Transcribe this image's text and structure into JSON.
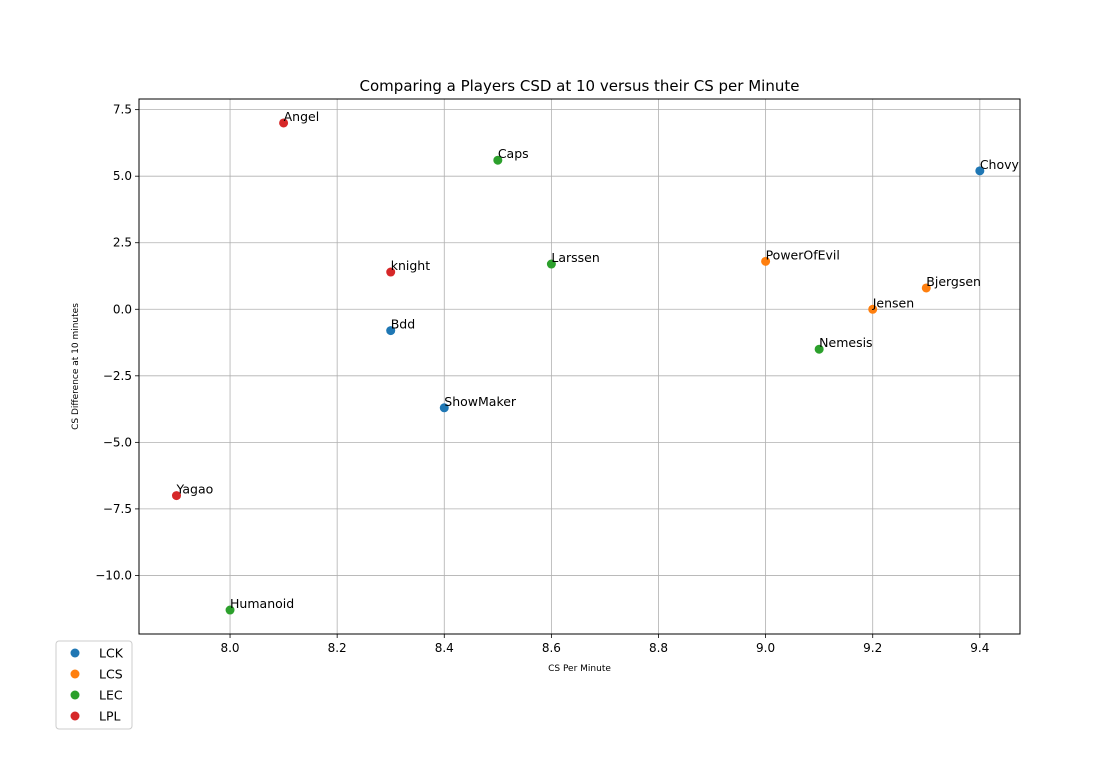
{
  "chart_data": {
    "type": "scatter",
    "title": "Comparing a Players CSD at 10 versus their CS per Minute",
    "xlabel": "CS Per Minute",
    "ylabel": "CS Difference at 10 minutes",
    "xlim": [
      7.83,
      9.475
    ],
    "ylim": [
      -12.2,
      7.9
    ],
    "x_ticks": [
      8.0,
      8.2,
      8.4,
      8.6,
      8.8,
      9.0,
      9.2,
      9.4
    ],
    "x_tick_labels": [
      "8.0",
      "8.2",
      "8.4",
      "8.6",
      "8.8",
      "9.0",
      "9.2",
      "9.4"
    ],
    "y_ticks": [
      -10.0,
      -7.5,
      -5.0,
      -2.5,
      0.0,
      2.5,
      5.0,
      7.5
    ],
    "y_tick_labels": [
      "−10.0",
      "−7.5",
      "−5.0",
      "−2.5",
      "0.0",
      "2.5",
      "5.0",
      "7.5"
    ],
    "grid": true,
    "legend_position": "lower-left-outside",
    "series": [
      {
        "name": "LCK",
        "color": "#1f77b4",
        "points": [
          {
            "label": "Chovy",
            "x": 9.4,
            "y": 5.2
          },
          {
            "label": "Bdd",
            "x": 8.3,
            "y": -0.8
          },
          {
            "label": "ShowMaker",
            "x": 8.4,
            "y": -3.7
          }
        ]
      },
      {
        "name": "LCS",
        "color": "#ff7f0e",
        "points": [
          {
            "label": "PowerOfEvil",
            "x": 9.0,
            "y": 1.8
          },
          {
            "label": "Bjergsen",
            "x": 9.3,
            "y": 0.8
          },
          {
            "label": "Jensen",
            "x": 9.2,
            "y": 0.0
          }
        ]
      },
      {
        "name": "LEC",
        "color": "#2ca02c",
        "points": [
          {
            "label": "Caps",
            "x": 8.5,
            "y": 5.6
          },
          {
            "label": "Larssen",
            "x": 8.6,
            "y": 1.7
          },
          {
            "label": "Nemesis",
            "x": 9.1,
            "y": -1.5
          },
          {
            "label": "Humanoid",
            "x": 8.0,
            "y": -11.3
          }
        ]
      },
      {
        "name": "LPL",
        "color": "#d62728",
        "points": [
          {
            "label": "Angel",
            "x": 8.1,
            "y": 7.0
          },
          {
            "label": "knight",
            "x": 8.3,
            "y": 1.4
          },
          {
            "label": "Yagao",
            "x": 7.9,
            "y": -7.0
          }
        ]
      }
    ]
  }
}
